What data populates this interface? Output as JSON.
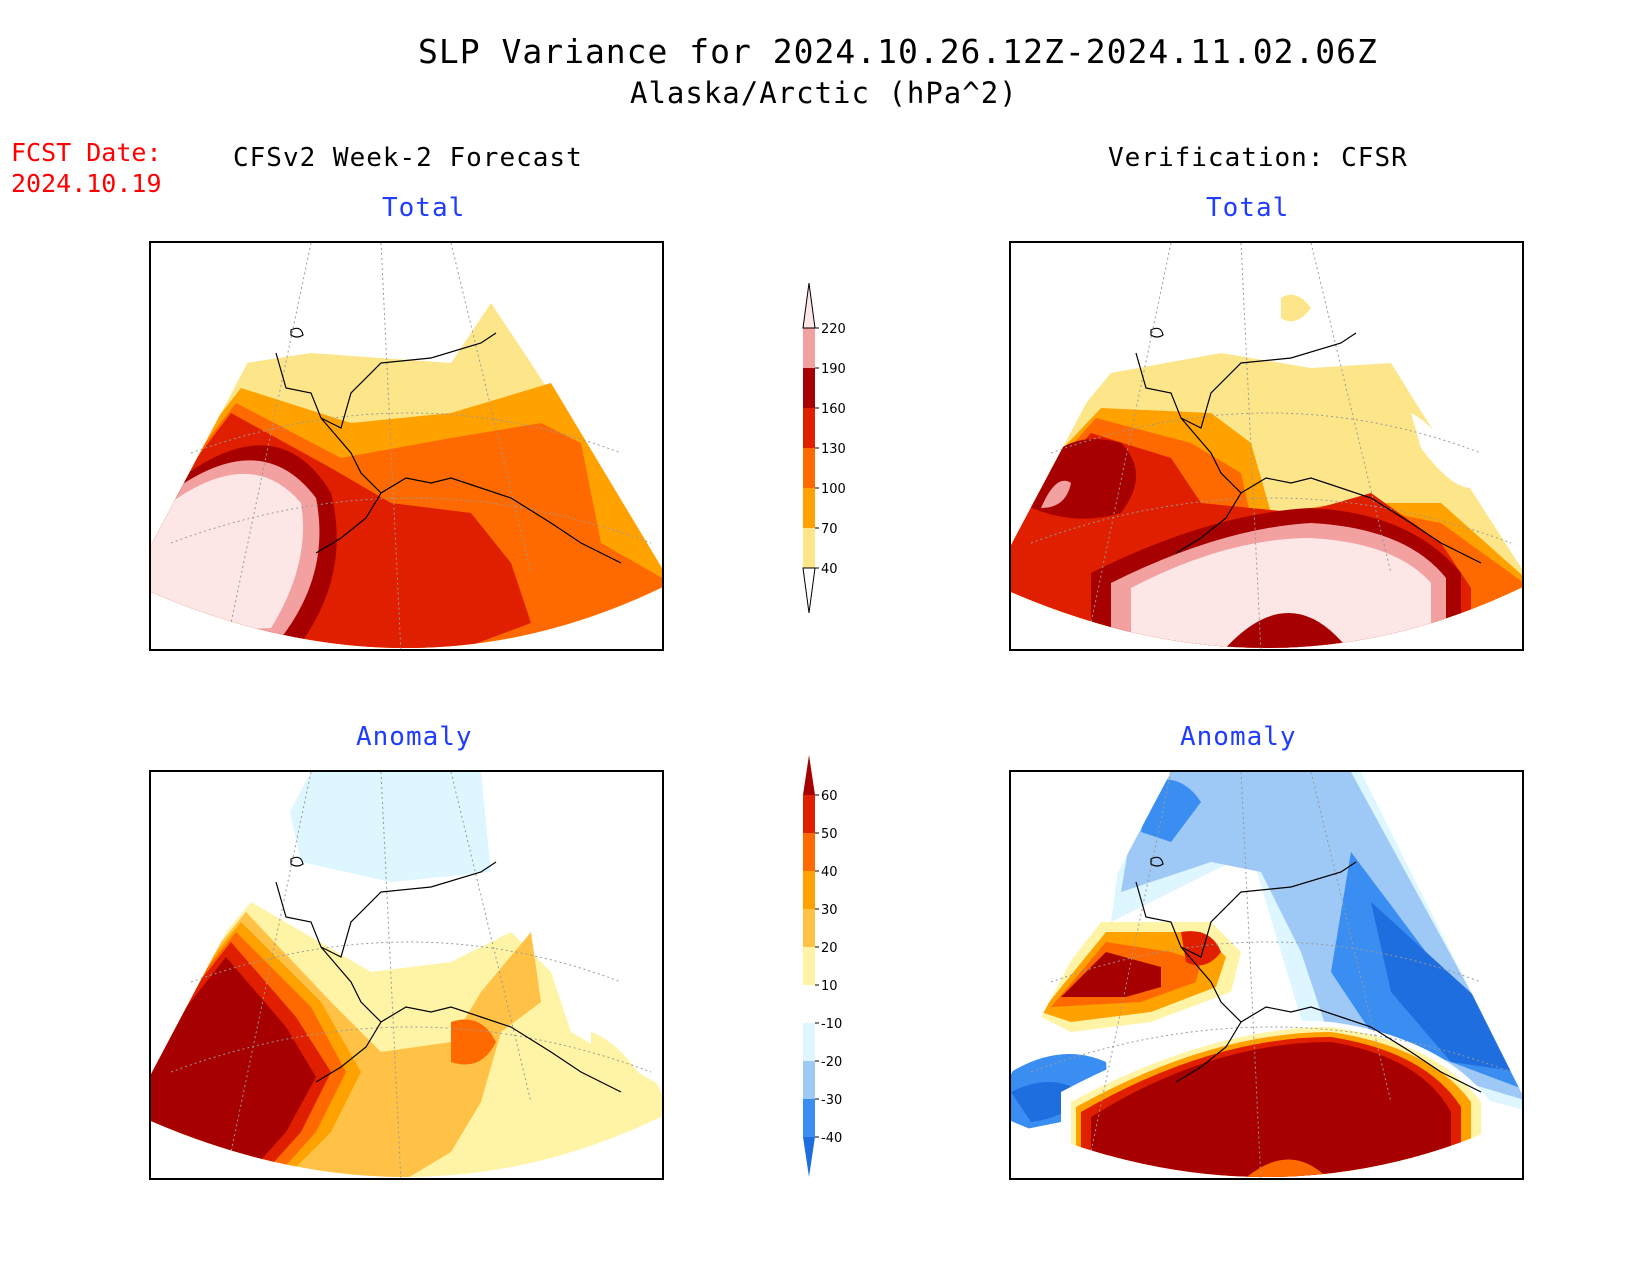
{
  "header": {
    "title": "SLP Variance for 2024.10.26.12Z-2024.11.02.06Z",
    "subtitle": "Alaska/Arctic (hPa^2)",
    "fcst_label": "FCST Date:",
    "fcst_date": "2024.10.19"
  },
  "columns": {
    "left": "CFSv2 Week-2 Forecast",
    "right": "Verification: CFSR"
  },
  "panels": {
    "forecast_total": "Total",
    "verif_total": "Total",
    "forecast_anomaly": "Anomaly",
    "verif_anomaly": "Anomaly"
  },
  "colorbars": {
    "total": {
      "ticks": [
        "40",
        "70",
        "100",
        "130",
        "160",
        "190",
        "220"
      ],
      "colors": [
        "#fde68a",
        "#ffa200",
        "#ff6a00",
        "#e01e00",
        "#a70000",
        "#f2a0a0",
        "#fde6e6"
      ]
    },
    "anomaly": {
      "ticks": [
        "-40",
        "-30",
        "-20",
        "-10",
        "10",
        "20",
        "30",
        "40",
        "50",
        "60"
      ],
      "colors": [
        "#1e6ee0",
        "#3a8ef2",
        "#9ec8f5",
        "#ddf6ff",
        "#ffffff",
        "#fff3a6",
        "#ffc246",
        "#ffa200",
        "#ff6a00",
        "#e01e00",
        "#a70000"
      ]
    }
  }
}
